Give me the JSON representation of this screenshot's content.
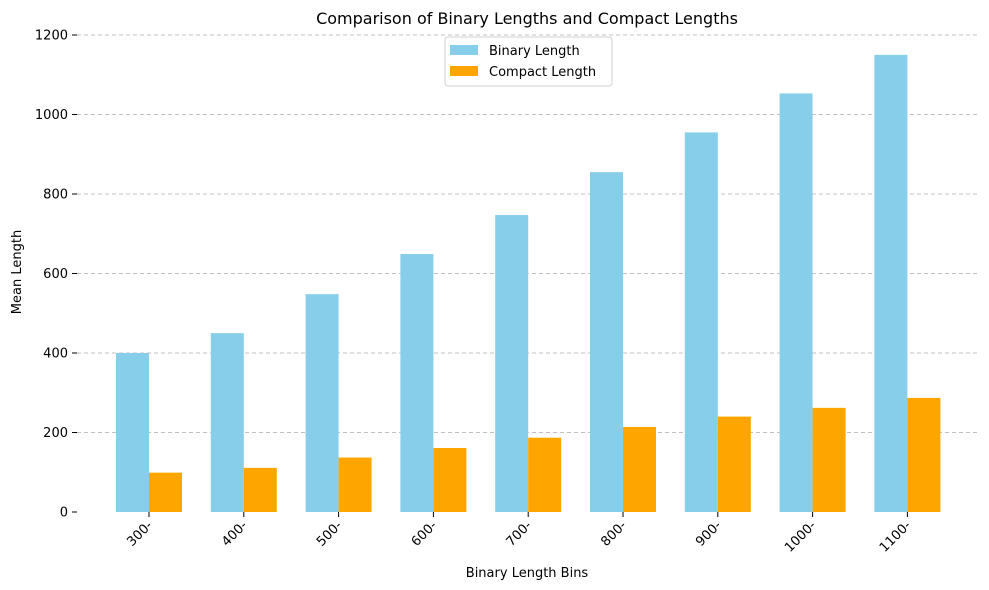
{
  "chart_data": {
    "type": "bar",
    "title": "Comparison of Binary Lengths and Compact Lengths",
    "xlabel": "Binary Length Bins",
    "ylabel": "Mean Length",
    "categories": [
      "300-",
      "400-",
      "500-",
      "600-",
      "700-",
      "800-",
      "900-",
      "1000-",
      "1100-"
    ],
    "series": [
      {
        "name": "Binary Length",
        "color": "#87CEEB",
        "values": [
          400,
          450,
          548,
          649,
          747,
          855,
          955,
          1053,
          1150
        ]
      },
      {
        "name": "Compact Length",
        "color": "#FFA500",
        "values": [
          99,
          111,
          137,
          161,
          187,
          214,
          240,
          262,
          287
        ]
      }
    ],
    "ylim": [
      0,
      1200
    ],
    "yticks": [
      0,
      200,
      400,
      600,
      800,
      1000,
      1200
    ],
    "grid": "y-dashed",
    "legend": "top-center",
    "xtick_rotation": 45
  }
}
